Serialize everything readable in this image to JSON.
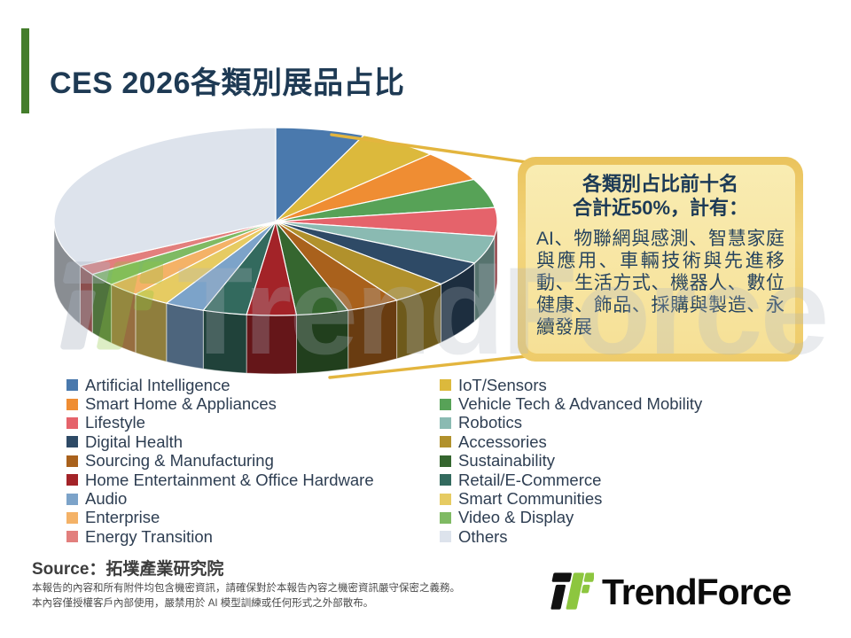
{
  "slide": {
    "title": "CES 2026各類別展品占比",
    "accent_color": "#447d2b",
    "title_color": "#1e3a54"
  },
  "callout": {
    "heading_line1": "各類別占比前十名",
    "heading_line2": "合計近50%，計有：",
    "body": "AI、物聯網與感測、智慧家庭與應用、車輛技術與先進移動、生活方式、機器人、數位健康、飾品、採購與製造、永續發展",
    "accent_color": "#e3b53e"
  },
  "chart_data": {
    "type": "pie",
    "style": "3d",
    "title": "CES 2026各類別展品占比",
    "unit": "%",
    "start_angle_deg": -90,
    "direction": "clockwise",
    "legend_position": "bottom",
    "values_are_estimates": true,
    "series": [
      {
        "label": "Artificial Intelligence",
        "value": 6.5,
        "color": "#4a79ad"
      },
      {
        "label": "IoT/Sensors",
        "value": 5.8,
        "color": "#dcb93c"
      },
      {
        "label": "Smart Home & Appliances",
        "value": 5.3,
        "color": "#ef8d33"
      },
      {
        "label": "Vehicle Tech & Advanced Mobility",
        "value": 5.0,
        "color": "#57a257"
      },
      {
        "label": "Lifestyle",
        "value": 4.9,
        "color": "#e5636b"
      },
      {
        "label": "Robotics",
        "value": 4.8,
        "color": "#8abab2"
      },
      {
        "label": "Digital Health",
        "value": 4.3,
        "color": "#2e4a66"
      },
      {
        "label": "Accessories",
        "value": 4.2,
        "color": "#b1912c"
      },
      {
        "label": "Sourcing & Manufacturing",
        "value": 3.9,
        "color": "#a9611c"
      },
      {
        "label": "Sustainability",
        "value": 3.8,
        "color": "#35662f"
      },
      {
        "label": "Home Entertainment & Office Hardware",
        "value": 3.6,
        "color": "#a32328"
      },
      {
        "label": "Retail/E-Commerce",
        "value": 3.2,
        "color": "#336a5e"
      },
      {
        "label": "Audio",
        "value": 2.9,
        "color": "#7ca3c9"
      },
      {
        "label": "Smart Communities",
        "value": 2.7,
        "color": "#e6cb62"
      },
      {
        "label": "Enterprise",
        "value": 2.4,
        "color": "#f4b267"
      },
      {
        "label": "Video & Display",
        "value": 2.2,
        "color": "#7fba63"
      },
      {
        "label": "Energy Transition",
        "value": 1.7,
        "color": "#e27f7d"
      },
      {
        "label": "Others",
        "value": 32.8,
        "color": "#dde3ec"
      }
    ]
  },
  "legend": {
    "columns": [
      [
        0,
        2,
        4,
        6,
        8,
        10,
        12,
        14,
        16
      ],
      [
        1,
        3,
        5,
        7,
        9,
        11,
        13,
        15,
        17
      ]
    ]
  },
  "source_text": "Source：拓墣產業研究院",
  "disclaimer": [
    "本報告的內容和所有附件均包含機密資訊，請確保對於本報告內容之機密資訊嚴守保密之義務。",
    "本內容僅授權客戶內部使用，嚴禁用於 AI 模型訓練或任何形式之外部散布。"
  ],
  "logo": {
    "text": "TrendForce",
    "brand_green": "#8dc63f"
  },
  "watermark": {
    "text": "TrendForce"
  }
}
